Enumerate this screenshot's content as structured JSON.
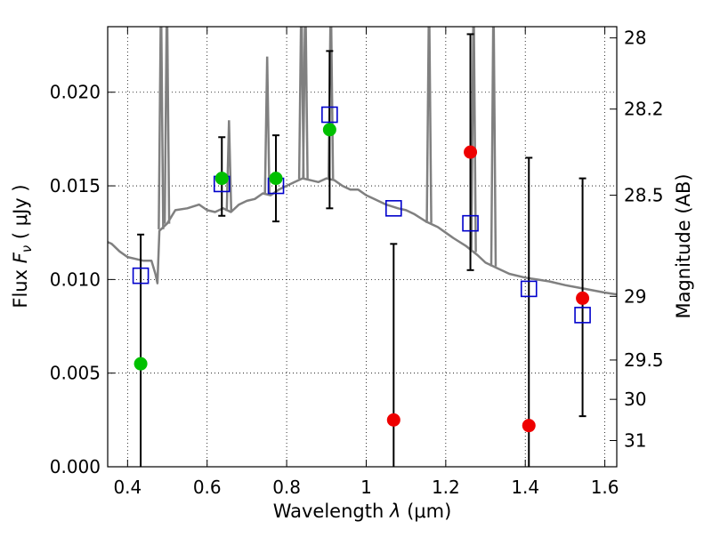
{
  "chart_data": {
    "type": "scatter",
    "xlabel": {
      "prefix": "Wavelength  ",
      "symbol": "λ",
      "unit": " (μm)"
    },
    "ylabel": {
      "prefix": "Flux  ",
      "symbol": "F",
      "subscript": "ν",
      "unit": "  ( μJy )"
    },
    "y2label": "Magnitude (AB)",
    "xlim": [
      0.35,
      1.63
    ],
    "ylim": [
      0.0,
      0.0235
    ],
    "grid": true,
    "x_ticks": [
      {
        "value": 0.4,
        "label": "0.4"
      },
      {
        "value": 0.6,
        "label": "0.6"
      },
      {
        "value": 0.8,
        "label": "0.8"
      },
      {
        "value": 1.0,
        "label": "1"
      },
      {
        "value": 1.2,
        "label": "1.2"
      },
      {
        "value": 1.4,
        "label": "1.4"
      },
      {
        "value": 1.6,
        "label": "1.6"
      }
    ],
    "y_ticks": [
      {
        "value": 0.0,
        "label": "0.000"
      },
      {
        "value": 0.005,
        "label": "0.005"
      },
      {
        "value": 0.01,
        "label": "0.010"
      },
      {
        "value": 0.015,
        "label": "0.015"
      },
      {
        "value": 0.02,
        "label": "0.020"
      }
    ],
    "y2_ticks": [
      {
        "flux": 0.0229,
        "label": "28"
      },
      {
        "flux": 0.0191,
        "label": "28.2"
      },
      {
        "flux": 0.0145,
        "label": "28.5"
      },
      {
        "flux": 0.0091,
        "label": "29"
      },
      {
        "flux": 0.0057,
        "label": "29.5"
      },
      {
        "flux": 0.0036,
        "label": "30"
      },
      {
        "flux": 0.0014,
        "label": "31"
      }
    ],
    "series": [
      {
        "kind": "model_spectrum",
        "color": "#808080",
        "x": [
          0.35,
          0.36,
          0.38,
          0.4,
          0.42,
          0.44,
          0.46,
          0.47,
          0.475,
          0.48,
          0.49,
          0.5,
          0.52,
          0.55,
          0.58,
          0.6,
          0.62,
          0.64,
          0.66,
          0.68,
          0.7,
          0.72,
          0.74,
          0.76,
          0.78,
          0.8,
          0.82,
          0.84,
          0.86,
          0.88,
          0.9,
          0.92,
          0.94,
          0.96,
          0.98,
          1.0,
          1.02,
          1.05,
          1.08,
          1.1,
          1.12,
          1.15,
          1.18,
          1.2,
          1.22,
          1.25,
          1.28,
          1.3,
          1.33,
          1.36,
          1.4,
          1.43,
          1.46,
          1.5,
          1.55,
          1.6,
          1.63
        ],
        "y": [
          0.012,
          0.0119,
          0.0115,
          0.0112,
          0.0111,
          0.011,
          0.011,
          0.0103,
          0.0098,
          0.0126,
          0.0128,
          0.013,
          0.0137,
          0.0138,
          0.014,
          0.0137,
          0.0136,
          0.0138,
          0.0136,
          0.014,
          0.0142,
          0.0143,
          0.0146,
          0.0145,
          0.0148,
          0.015,
          0.0152,
          0.0154,
          0.0153,
          0.0152,
          0.0154,
          0.0153,
          0.015,
          0.0148,
          0.0148,
          0.0145,
          0.0143,
          0.014,
          0.0138,
          0.0137,
          0.0135,
          0.0131,
          0.0128,
          0.0125,
          0.0122,
          0.0118,
          0.0113,
          0.0109,
          0.0106,
          0.0103,
          0.0101,
          0.01,
          0.0099,
          0.0097,
          0.0095,
          0.0093,
          0.0092
        ],
        "emission_lines": [
          {
            "x": 0.484,
            "peak": 0.0235
          },
          {
            "x": 0.499,
            "peak": 0.0235
          },
          {
            "x": 0.655,
            "peak": 0.0165
          },
          {
            "x": 0.751,
            "peak": 0.0199
          },
          {
            "x": 0.837,
            "peak": 0.0235
          },
          {
            "x": 0.847,
            "peak": 0.0235
          },
          {
            "x": 0.911,
            "peak": 0.0235
          },
          {
            "x": 1.158,
            "peak": 0.0235
          },
          {
            "x": 1.27,
            "peak": 0.0235
          },
          {
            "x": 1.32,
            "peak": 0.0235
          }
        ]
      },
      {
        "kind": "model_photometry",
        "marker": "open-square",
        "color": "#0000cc",
        "x": [
          0.433,
          0.637,
          0.773,
          0.908,
          1.069,
          1.262,
          1.409,
          1.544
        ],
        "y": [
          0.0102,
          0.0151,
          0.015,
          0.0188,
          0.0138,
          0.013,
          0.0095,
          0.0081
        ]
      },
      {
        "kind": "observed_photometry",
        "marker": "filled-circle",
        "color": "#00c000",
        "x": [
          0.433,
          0.637,
          0.773,
          0.908
        ],
        "y": [
          0.0055,
          0.0154,
          0.0154,
          0.018
        ]
      },
      {
        "kind": "observed_photometry",
        "marker": "filled-circle",
        "color": "#ee0000",
        "x": [
          1.069,
          1.262,
          1.409,
          1.544
        ],
        "y": [
          0.0025,
          0.0168,
          0.0022,
          0.009
        ]
      }
    ],
    "error_bars": {
      "color": "#000000",
      "items": [
        {
          "x": 0.433,
          "low": 0.0,
          "high": 0.0124
        },
        {
          "x": 0.637,
          "low": 0.0134,
          "high": 0.0176
        },
        {
          "x": 0.773,
          "low": 0.0131,
          "high": 0.0177
        },
        {
          "x": 0.908,
          "low": 0.0138,
          "high": 0.0222
        },
        {
          "x": 1.069,
          "low": 0.0,
          "high": 0.0119
        },
        {
          "x": 1.262,
          "low": 0.0105,
          "high": 0.0231
        },
        {
          "x": 1.409,
          "low": 0.0,
          "high": 0.0165
        },
        {
          "x": 1.544,
          "low": 0.0027,
          "high": 0.0154
        }
      ]
    }
  }
}
